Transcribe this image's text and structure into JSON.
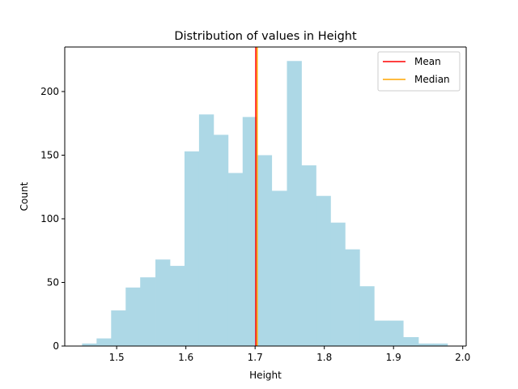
{
  "chart_data": {
    "type": "bar",
    "title": "Distribution of values in Height",
    "xlabel": "Height",
    "ylabel": "Count",
    "xlim": [
      1.425,
      2.005
    ],
    "ylim": [
      0,
      235
    ],
    "xticks": [
      1.5,
      1.6,
      1.7,
      1.8,
      1.9,
      2.0
    ],
    "xtick_labels": [
      "1.5",
      "1.6",
      "1.7",
      "1.8",
      "1.9",
      "2.0"
    ],
    "yticks": [
      0,
      50,
      100,
      150,
      200
    ],
    "ytick_labels": [
      "0",
      "50",
      "100",
      "150",
      "200"
    ],
    "bin_edges": [
      1.45,
      1.471,
      1.492,
      1.513,
      1.534,
      1.556,
      1.577,
      1.598,
      1.619,
      1.64,
      1.661,
      1.682,
      1.703,
      1.724,
      1.746,
      1.767,
      1.788,
      1.809,
      1.83,
      1.851,
      1.872,
      1.893,
      1.914,
      1.936,
      1.957,
      1.978
    ],
    "counts": [
      2,
      6,
      28,
      46,
      54,
      68,
      63,
      153,
      182,
      166,
      136,
      180,
      150,
      122,
      224,
      142,
      118,
      97,
      76,
      47,
      20,
      20,
      7,
      2,
      2
    ],
    "bar_color": "#add8e6",
    "series": [
      {
        "name": "Mean",
        "x": 1.701,
        "color": "#ff0000"
      },
      {
        "name": "Median",
        "x": 1.703,
        "color": "#ffa500"
      }
    ],
    "legend_position": "upper right",
    "grid": false
  }
}
